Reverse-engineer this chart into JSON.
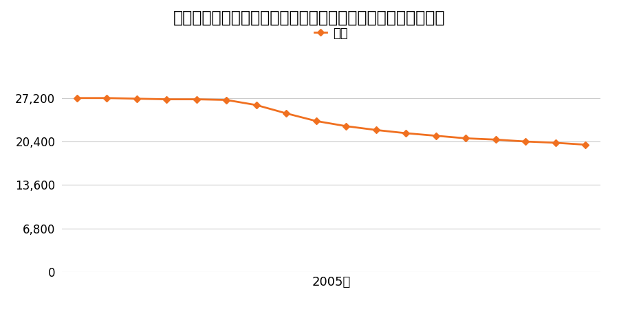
{
  "title": "奈良県高市郡明日香村大字大根田字イケダ１４４番の地価推移",
  "legend_label": "価格",
  "xlabel": "2005年",
  "years": [
    1997,
    1998,
    1999,
    2000,
    2001,
    2002,
    2003,
    2004,
    2005,
    2006,
    2007,
    2008,
    2009,
    2010,
    2011,
    2012,
    2013,
    2014
  ],
  "values": [
    27200,
    27200,
    27100,
    27000,
    27000,
    26900,
    26100,
    24800,
    23600,
    22800,
    22200,
    21700,
    21300,
    20900,
    20700,
    20400,
    20200,
    19900
  ],
  "line_color": "#f07020",
  "marker_color": "#f07020",
  "marker_style": "D",
  "marker_size": 5,
  "line_width": 2.0,
  "yticks": [
    0,
    6800,
    13600,
    20400,
    27200
  ],
  "ylim": [
    0,
    29000
  ],
  "background_color": "#ffffff",
  "grid_color": "#cccccc",
  "title_fontsize": 17,
  "legend_fontsize": 13,
  "tick_fontsize": 12,
  "xlabel_fontsize": 13
}
